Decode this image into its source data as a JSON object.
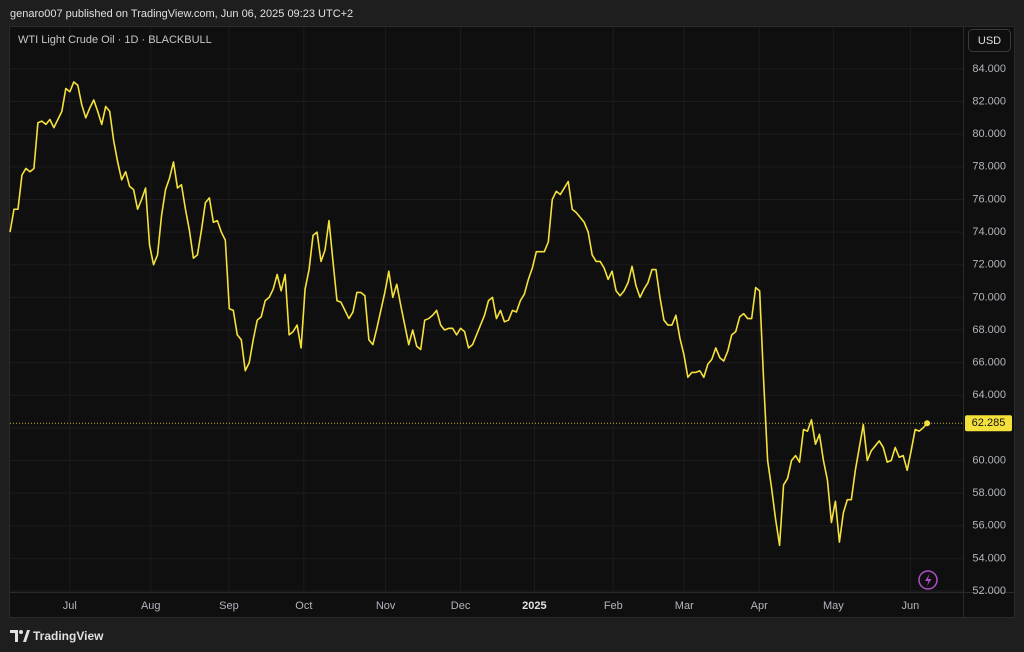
{
  "header": "genaro007 published on TradingView.com, Jun 06, 2025 09:23 UTC+2",
  "footer": "TradingView",
  "chart_data": {
    "type": "line",
    "title": "WTI Light Crude Oil · 1D · BLACKBULL",
    "currency": "USD",
    "grid": true,
    "xlim": [
      0,
      239
    ],
    "ylim": [
      51.94,
      86.57
    ],
    "xticks": [
      {
        "value": 15,
        "label": "Jul"
      },
      {
        "value": 35.3,
        "label": "Aug"
      },
      {
        "value": 54.9,
        "label": "Sep"
      },
      {
        "value": 73.7,
        "label": "Oct"
      },
      {
        "value": 94.2,
        "label": "Nov"
      },
      {
        "value": 113,
        "label": "Dec"
      },
      {
        "value": 131.5,
        "label": "2025"
      },
      {
        "value": 151.3,
        "label": "Feb"
      },
      {
        "value": 169.1,
        "label": "Mar"
      },
      {
        "value": 187.9,
        "label": "Apr"
      },
      {
        "value": 206.5,
        "label": "May"
      },
      {
        "value": 225.8,
        "label": "Jun"
      }
    ],
    "yticks": [
      {
        "value": 52,
        "label": "52.000"
      },
      {
        "value": 54,
        "label": "54.000"
      },
      {
        "value": 56,
        "label": "56.000"
      },
      {
        "value": 58,
        "label": "58.000"
      },
      {
        "value": 60,
        "label": "60.000"
      },
      {
        "value": 62,
        "label": "62.000"
      },
      {
        "value": 64,
        "label": "64.000"
      },
      {
        "value": 66,
        "label": "66.000"
      },
      {
        "value": 68,
        "label": "68.000"
      },
      {
        "value": 70,
        "label": "70.000"
      },
      {
        "value": 72,
        "label": "72.000"
      },
      {
        "value": 74,
        "label": "74.000"
      },
      {
        "value": 76,
        "label": "76.000"
      },
      {
        "value": 78,
        "label": "78.000"
      },
      {
        "value": 80,
        "label": "80.000"
      },
      {
        "value": 82,
        "label": "82.000"
      },
      {
        "value": 84,
        "label": "84.000"
      }
    ],
    "series": [
      {
        "color": "#f5e13b",
        "values": [
          74.0,
          75.4,
          75.4,
          77.5,
          77.9,
          77.7,
          77.9,
          80.7,
          80.8,
          80.6,
          80.9,
          80.4,
          80.9,
          81.4,
          82.8,
          82.6,
          83.2,
          83.0,
          81.8,
          81.0,
          81.6,
          82.1,
          81.4,
          80.6,
          81.7,
          81.4,
          79.6,
          78.3,
          77.2,
          77.7,
          76.8,
          76.6,
          75.4,
          76.0,
          76.7,
          73.2,
          72.0,
          72.6,
          75.0,
          76.6,
          77.3,
          78.3,
          76.7,
          76.9,
          75.4,
          74.1,
          72.4,
          72.6,
          74.1,
          75.8,
          76.1,
          74.6,
          74.7,
          74.0,
          73.5,
          69.3,
          69.2,
          67.7,
          67.4,
          65.5,
          66.0,
          67.4,
          68.6,
          68.8,
          69.8,
          70.0,
          70.5,
          71.4,
          70.4,
          71.4,
          67.7,
          67.9,
          68.3,
          66.9,
          70.5,
          71.7,
          73.8,
          74.0,
          72.2,
          72.9,
          74.7,
          72.2,
          69.8,
          69.7,
          69.2,
          68.7,
          69.1,
          70.3,
          70.3,
          70.1,
          67.4,
          67.1,
          68.1,
          69.2,
          70.3,
          71.6,
          70.0,
          70.8,
          69.5,
          68.3,
          67.1,
          68.0,
          67.0,
          66.8,
          68.6,
          68.7,
          68.9,
          69.2,
          68.3,
          68.0,
          68.1,
          68.1,
          67.7,
          68.1,
          67.9,
          66.9,
          67.1,
          67.7,
          68.3,
          68.9,
          69.8,
          70.0,
          68.7,
          69.2,
          68.5,
          68.6,
          69.2,
          69.1,
          69.8,
          70.2,
          71.1,
          71.8,
          72.8,
          72.8,
          72.8,
          73.4,
          76.0,
          76.5,
          76.3,
          76.7,
          77.1,
          75.4,
          75.2,
          74.9,
          74.6,
          74.0,
          72.6,
          72.2,
          72.2,
          71.8,
          71.1,
          71.6,
          70.4,
          70.1,
          70.4,
          70.9,
          71.9,
          70.7,
          70.0,
          70.5,
          70.9,
          71.7,
          71.7,
          70.0,
          68.6,
          68.3,
          68.3,
          68.9,
          67.5,
          66.5,
          65.1,
          65.4,
          65.4,
          65.5,
          65.1,
          65.9,
          66.2,
          66.9,
          66.3,
          66.1,
          66.7,
          67.7,
          67.9,
          68.8,
          69.0,
          68.7,
          68.7,
          70.6,
          70.4,
          64.9,
          60.0,
          58.3,
          56.4,
          54.8,
          58.5,
          58.9,
          60.0,
          60.3,
          59.9,
          61.9,
          61.8,
          62.5,
          61.0,
          61.6,
          60.0,
          58.8,
          56.2,
          57.5,
          55.0,
          56.8,
          57.6,
          57.6,
          59.4,
          60.8,
          62.2,
          60.0,
          60.6,
          60.9,
          61.2,
          60.8,
          59.9,
          60.0,
          60.8,
          60.2,
          60.3,
          59.4,
          60.6,
          61.9,
          61.8,
          62.0,
          62.285
        ]
      }
    ]
  }
}
